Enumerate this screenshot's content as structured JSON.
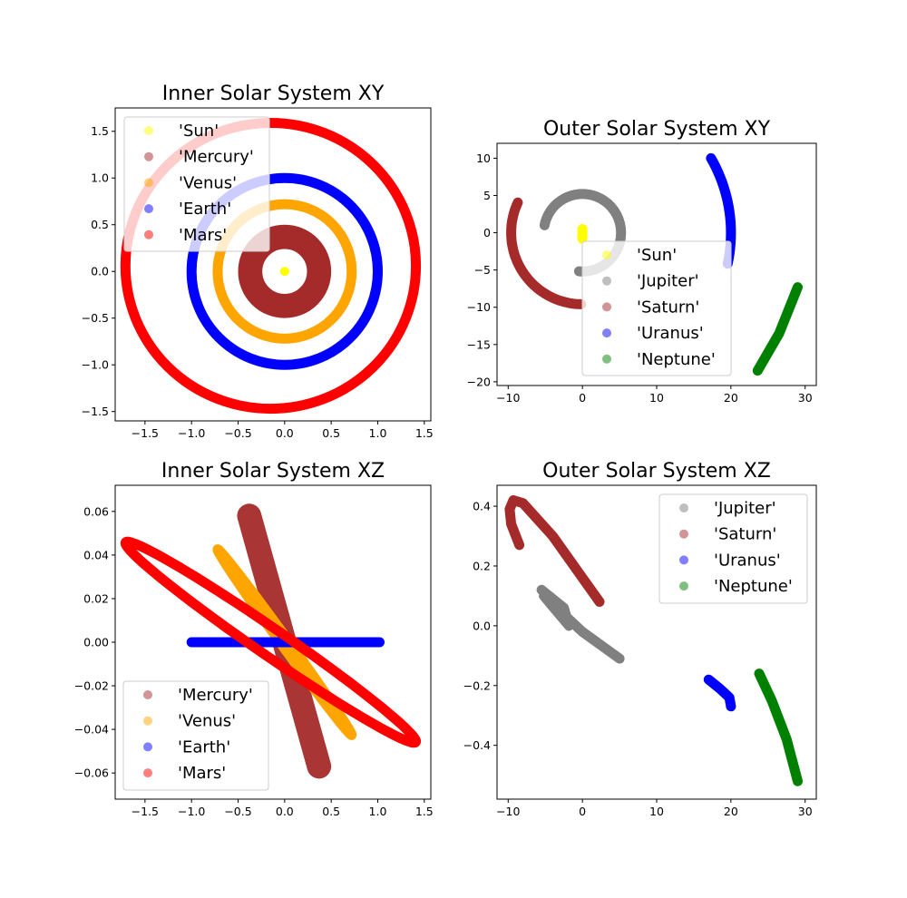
{
  "chart_data": [
    {
      "type": "scatter",
      "title": "Inner Solar System XY",
      "xlim": [
        -1.82,
        1.57
      ],
      "ylim": [
        -1.6,
        1.75
      ],
      "xticks": [
        "−1.5",
        "−1.0",
        "−0.5",
        "0.0",
        "0.5",
        "1.0",
        "1.5"
      ],
      "xtick_values": [
        -1.5,
        -1.0,
        -0.5,
        0.0,
        0.5,
        1.0,
        1.5
      ],
      "yticks": [
        "−1.5",
        "−1.0",
        "−0.5",
        "0.0",
        "0.5",
        "1.0",
        "1.5"
      ],
      "ytick_values": [
        -1.5,
        -1.0,
        -0.5,
        0.0,
        0.5,
        1.0,
        1.5
      ],
      "legend_position": "upper-left",
      "series": [
        {
          "name": "'Sun'",
          "color": "#ffff00",
          "orbit": {
            "kind": "point",
            "x": 0,
            "y": 0
          }
        },
        {
          "name": "'Mercury'",
          "color": "#a52a2a",
          "orbit": {
            "kind": "annulus",
            "cx": 0,
            "cy": 0,
            "r_inner": 0.24,
            "r_outer": 0.5
          }
        },
        {
          "name": "'Venus'",
          "color": "#ffa500",
          "orbit": {
            "kind": "ellipse",
            "cx": 0,
            "cy": 0,
            "rx": 0.72,
            "ry": 0.72
          }
        },
        {
          "name": "'Earth'",
          "color": "#0000ff",
          "orbit": {
            "kind": "ellipse",
            "cx": 0,
            "cy": 0,
            "rx": 1.0,
            "ry": 1.0
          }
        },
        {
          "name": "'Mars'",
          "color": "#ff0000",
          "orbit": {
            "kind": "ellipse",
            "cx": -0.15,
            "cy": 0.06,
            "rx": 1.56,
            "ry": 1.53
          }
        }
      ]
    },
    {
      "type": "scatter",
      "title": "Outer Solar System XY",
      "xlim": [
        -11.5,
        31.5
      ],
      "ylim": [
        -20.5,
        12
      ],
      "xticks": [
        "−10",
        "0",
        "10",
        "20",
        "30"
      ],
      "xtick_values": [
        -10,
        0,
        10,
        20,
        30
      ],
      "yticks": [
        "−20",
        "−15",
        "−10",
        "−5",
        "0",
        "5",
        "10"
      ],
      "ytick_values": [
        -20,
        -15,
        -10,
        -5,
        0,
        5,
        10
      ],
      "legend_position": "lower-right",
      "series": [
        {
          "name": "'Sun'",
          "color": "#ffff00",
          "orbit": {
            "kind": "polyline",
            "points": [
              [
                0,
                0.5
              ],
              [
                0,
                -0.8
              ]
            ]
          }
        },
        {
          "name": "'Jupiter'",
          "color": "#808080",
          "orbit": {
            "kind": "arc",
            "cx": 0,
            "cy": 0,
            "r": 5.2,
            "a0": 265,
            "a1": 360,
            "a2": 530
          }
        },
        {
          "name": "'Saturn'",
          "color": "#a52a2a",
          "orbit": {
            "kind": "arc",
            "cx": 0,
            "cy": 0,
            "r": 9.6,
            "a0": 155,
            "a1": 270
          }
        },
        {
          "name": "'Uranus'",
          "color": "#0000ff",
          "orbit": {
            "kind": "arc",
            "cx": 0,
            "cy": 0,
            "r": 20,
            "a0": -12,
            "a1": 31
          }
        },
        {
          "name": "'Neptune'",
          "color": "#008000",
          "orbit": {
            "kind": "polyline",
            "points": [
              [
                23.6,
                -18.5
              ],
              [
                26.5,
                -13.5
              ],
              [
                29,
                -7.3
              ]
            ]
          }
        }
      ]
    },
    {
      "type": "scatter",
      "title": "Inner Solar System XZ",
      "xlim": [
        -1.82,
        1.57
      ],
      "ylim": [
        -0.072,
        0.072
      ],
      "xticks": [
        "−1.5",
        "−1.0",
        "−0.5",
        "0.0",
        "0.5",
        "1.0",
        "1.5"
      ],
      "xtick_values": [
        -1.5,
        -1.0,
        -0.5,
        0.0,
        0.5,
        1.0,
        1.5
      ],
      "yticks": [
        "−0.06",
        "−0.04",
        "−0.02",
        "0.00",
        "0.02",
        "0.04",
        "0.06"
      ],
      "ytick_values": [
        -0.06,
        -0.04,
        -0.02,
        0.0,
        0.02,
        0.04,
        0.06
      ],
      "legend_position": "lower-left",
      "series": [
        {
          "name": "'Mercury'",
          "color": "#a52a2a",
          "orbit": {
            "kind": "band",
            "points": [
              [
                -0.38,
                0.058
              ],
              [
                0.37,
                -0.057
              ]
            ],
            "width": 0.26
          }
        },
        {
          "name": "'Venus'",
          "color": "#ffa500",
          "orbit": {
            "kind": "tilted",
            "cx": 0,
            "rx": 0.72,
            "c": 0.0425,
            "e": 0.003
          }
        },
        {
          "name": "'Earth'",
          "color": "#0000ff",
          "orbit": {
            "kind": "polyline",
            "points": [
              [
                -1.0,
                0.0
              ],
              [
                1.02,
                0.0
              ]
            ]
          }
        },
        {
          "name": "'Mars'",
          "color": "#ff0000",
          "orbit": {
            "kind": "tilted",
            "cx": -0.15,
            "rx": 1.56,
            "c": 0.0455,
            "e": 0.0075
          }
        }
      ]
    },
    {
      "type": "scatter",
      "title": "Outer Solar System XZ",
      "xlim": [
        -11.5,
        31.5
      ],
      "ylim": [
        -0.58,
        0.47
      ],
      "xticks": [
        "−10",
        "0",
        "10",
        "20",
        "30"
      ],
      "xtick_values": [
        -10,
        0,
        10,
        20,
        30
      ],
      "yticks": [
        "−0.4",
        "−0.2",
        "0.0",
        "0.2",
        "0.4"
      ],
      "ytick_values": [
        -0.4,
        -0.2,
        0.0,
        0.2,
        0.4
      ],
      "legend_position": "upper-right",
      "series": [
        {
          "name": "'Jupiter'",
          "color": "#808080",
          "orbit": {
            "kind": "polyline",
            "points": [
              [
                -5.5,
                0.12
              ],
              [
                -2.5,
                0.06
              ],
              [
                -1.8,
                0.0
              ],
              [
                -4.2,
                0.07
              ],
              [
                -5.2,
                0.1
              ],
              [
                0.0,
                -0.02
              ],
              [
                5.0,
                -0.11
              ]
            ]
          }
        },
        {
          "name": "'Saturn'",
          "color": "#a52a2a",
          "orbit": {
            "kind": "polyline",
            "points": [
              [
                -8.5,
                0.27
              ],
              [
                -9.6,
                0.34
              ],
              [
                -9.8,
                0.39
              ],
              [
                -9.3,
                0.42
              ],
              [
                -8.0,
                0.41
              ],
              [
                -4.0,
                0.3
              ],
              [
                2.3,
                0.08
              ]
            ]
          }
        },
        {
          "name": "'Uranus'",
          "color": "#0000ff",
          "orbit": {
            "kind": "polyline",
            "points": [
              [
                17.0,
                -0.18
              ],
              [
                18.5,
                -0.21
              ],
              [
                19.8,
                -0.24
              ],
              [
                20.0,
                -0.27
              ]
            ]
          }
        },
        {
          "name": "'Neptune'",
          "color": "#008000",
          "orbit": {
            "kind": "polyline",
            "points": [
              [
                23.8,
                -0.16
              ],
              [
                25.5,
                -0.25
              ],
              [
                27.5,
                -0.38
              ],
              [
                29.0,
                -0.52
              ]
            ]
          }
        }
      ]
    }
  ]
}
